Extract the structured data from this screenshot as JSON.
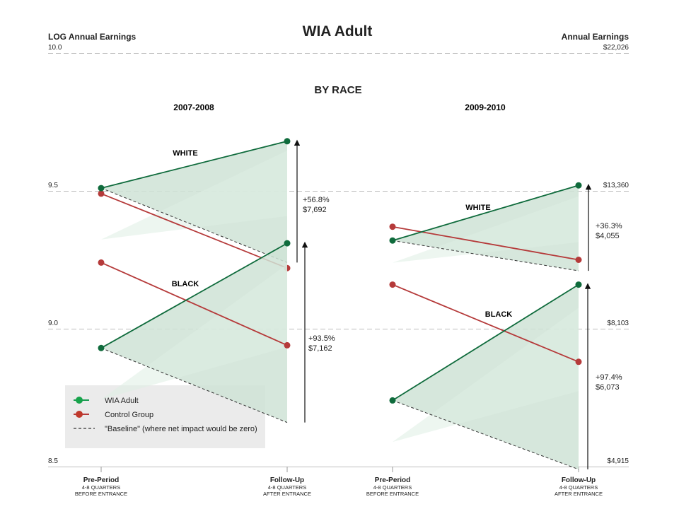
{
  "title": "WIA Adult",
  "subtitle": "BY RACE",
  "left_axis_title": "LOG Annual Earnings",
  "right_axis_title": "Annual Earnings",
  "left_ticks": [
    "10.0",
    "9.5",
    "9.0",
    "8.5"
  ],
  "right_ticks": [
    "$22,026",
    "$13,360",
    "$8,103",
    "$4,915"
  ],
  "legend": {
    "wia": "WIA Adult",
    "control": "Control Group",
    "baseline": "\"Baseline\" (where net impact would be zero)"
  },
  "colors": {
    "wia": "#0f6b3c",
    "control": "#b53a3a",
    "fill": "#cfe3d6",
    "fill_dark": "#a9cdb7",
    "legend_bg": "#ebebeb",
    "grid": "#bdbdbd"
  },
  "x_labels": {
    "pre_title": "Pre-Period",
    "pre_sub1": "4-8 QUARTERS",
    "pre_sub2": "BEFORE ENTRANCE",
    "post_title": "Follow-Up",
    "post_sub1": "4-8 QUARTERS",
    "post_sub2": "AFTER ENTRANCE"
  },
  "chart_data": {
    "type": "line",
    "yscale": "log",
    "ylim": [
      8.5,
      10.0
    ],
    "ylabel_left": "LOG Annual Earnings",
    "ylabel_right": "Annual Earnings",
    "x": [
      "Pre-Period",
      "Follow-Up"
    ],
    "panels": [
      {
        "title": "2007-2008",
        "groups": [
          {
            "name": "WHITE",
            "wia": [
              9.51,
              9.68
            ],
            "control": [
              9.49,
              9.22
            ],
            "baseline": [
              9.51,
              9.24
            ],
            "impact_pct": "+56.8%",
            "impact_usd": "$7,692"
          },
          {
            "name": "BLACK",
            "wia": [
              8.93,
              9.31
            ],
            "control": [
              9.24,
              8.94
            ],
            "baseline": [
              8.93,
              8.66
            ],
            "impact_pct": "+93.5%",
            "impact_usd": "$7,162"
          }
        ]
      },
      {
        "title": "2009-2010",
        "groups": [
          {
            "name": "WHITE",
            "wia": [
              9.32,
              9.52
            ],
            "control": [
              9.37,
              9.25
            ],
            "baseline": [
              9.32,
              9.21
            ],
            "impact_pct": "+36.3%",
            "impact_usd": "$4,055"
          },
          {
            "name": "BLACK",
            "wia": [
              8.74,
              9.16
            ],
            "control": [
              9.16,
              8.88
            ],
            "baseline": [
              8.74,
              8.49
            ],
            "impact_pct": "+97.4%",
            "impact_usd": "$6,073"
          }
        ]
      }
    ]
  }
}
